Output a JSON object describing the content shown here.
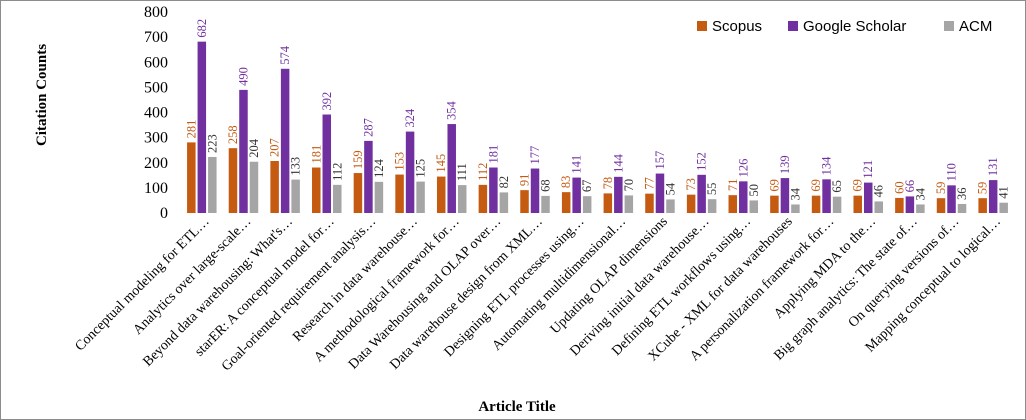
{
  "chart_data": {
    "type": "bar",
    "title": "",
    "xlabel": "Article Title",
    "ylabel": "Citation Counts",
    "ylim": [
      0,
      800
    ],
    "yticks": [
      0,
      100,
      200,
      300,
      400,
      500,
      600,
      700,
      800
    ],
    "grid": false,
    "legend_position": "top-right",
    "categories": [
      "Conceptual modeling for ETL…",
      "Analytics over large-scale…",
      "Beyond data warehousing: What's…",
      "starER: A conceptual model for…",
      "Goal-oriented requirement analysis…",
      "Research in data warehouse…",
      "A methodological framework for…",
      "Data Warehousing and OLAP over…",
      "Data warehouse design from XML…",
      "Designing ETL processes using…",
      "Automating multidimensional…",
      "Updating OLAP dimensions",
      "Deriving initial data warehouse…",
      "Defining ETL workflows using…",
      "XCube - XML for data warehouses",
      "A personalization framework for…",
      "Applying MDA to the…",
      "Big graph analytics: The state of…",
      "On querying versions of…",
      "Mapping conceptual to logical…"
    ],
    "series": [
      {
        "name": "Scopus",
        "color": "#c55a11",
        "values": [
          281,
          258,
          207,
          181,
          159,
          153,
          145,
          112,
          91,
          83,
          78,
          77,
          73,
          71,
          69,
          69,
          69,
          60,
          59,
          59
        ]
      },
      {
        "name": "Google Scholar",
        "color": "#7030a0",
        "values": [
          682,
          490,
          574,
          392,
          287,
          324,
          354,
          181,
          177,
          141,
          144,
          157,
          152,
          126,
          139,
          134,
          121,
          66,
          110,
          131
        ]
      },
      {
        "name": "ACM",
        "color": "#a5a5a5",
        "values": [
          223,
          204,
          133,
          112,
          124,
          125,
          111,
          82,
          68,
          67,
          70,
          54,
          55,
          50,
          34,
          65,
          46,
          34,
          36,
          41
        ]
      }
    ]
  }
}
